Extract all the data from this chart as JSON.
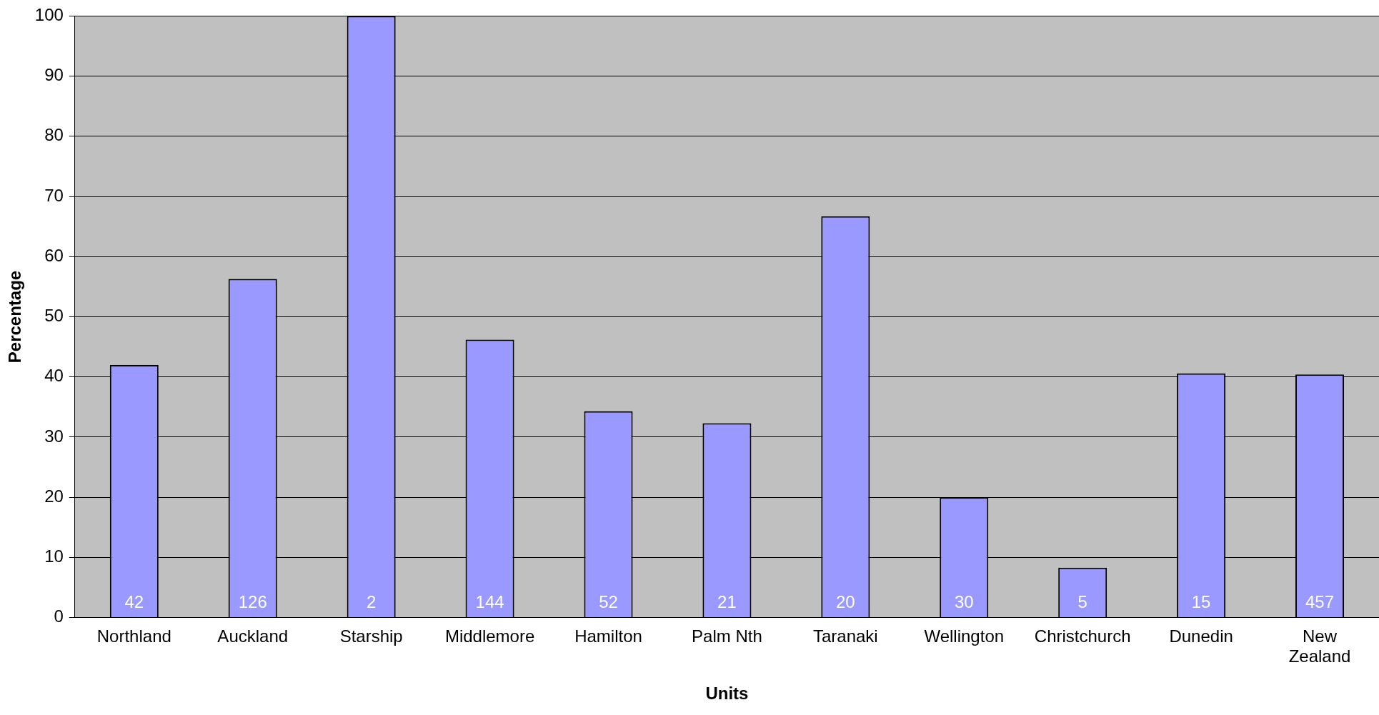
{
  "chart_data": {
    "type": "bar",
    "xlabel": "Units",
    "ylabel": "Percentage",
    "categories": [
      "Northland",
      "Auckland",
      "Starship",
      "Middlemore",
      "Hamilton",
      "Palm Nth",
      "Taranaki",
      "Wellington",
      "Christchurch",
      "Dunedin",
      "New Zealand"
    ],
    "values": [
      42,
      56.3,
      100,
      46.2,
      34.3,
      32.3,
      66.7,
      20,
      8.3,
      40.6,
      40.4
    ],
    "annotations": [
      {
        "text": "42",
        "x": "Northland",
        "y": 0
      },
      {
        "text": "126",
        "x": "Auckland",
        "y": 0
      },
      {
        "text": "2",
        "x": "Starship",
        "y": 0
      },
      {
        "text": "144",
        "x": "Middlemore",
        "y": 0
      },
      {
        "text": "52",
        "x": "Hamilton",
        "y": 0
      },
      {
        "text": "21",
        "x": "Palm Nth",
        "y": 0
      },
      {
        "text": "20",
        "x": "Taranaki",
        "y": 0
      },
      {
        "text": "30",
        "x": "Wellington",
        "y": 0
      },
      {
        "text": "5",
        "x": "Christchurch",
        "y": 0
      },
      {
        "text": "15",
        "x": "Dunedin",
        "y": 0
      },
      {
        "text": "457",
        "x": "New Zealand",
        "y": 0
      }
    ],
    "color": "#9999ff",
    "ylim": [
      0,
      100
    ],
    "yticks": [
      0,
      10,
      20,
      30,
      40,
      50,
      60,
      70,
      80,
      90,
      100
    ],
    "grid": "y",
    "legend": false
  }
}
